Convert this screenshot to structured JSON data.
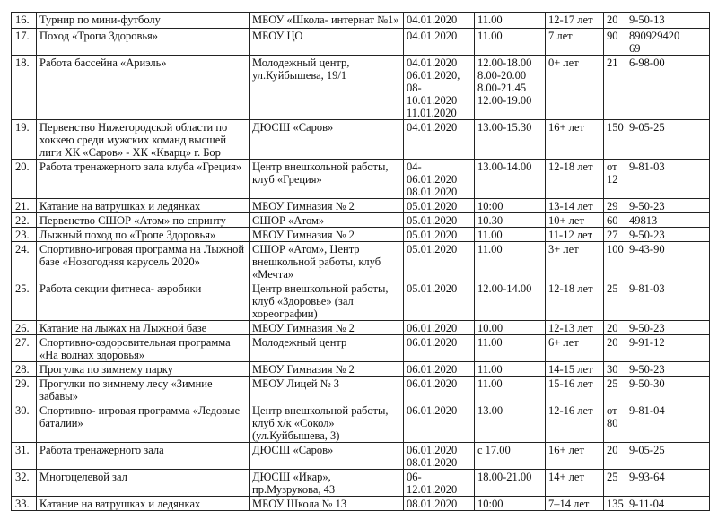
{
  "rows": [
    {
      "n": "16.",
      "name": "Турнир по мини-футболу",
      "org": "МБОУ «Школа- интернат №1»",
      "date": "04.01.2020",
      "time": "11.00",
      "age": "12-17 лет",
      "count": "20",
      "phone": "9-50-13"
    },
    {
      "n": "17.",
      "name": "Поход «Тропа Здоровья»",
      "org": "МБОУ ЦО",
      "date": "04.01.2020",
      "time": "11.00",
      "age": "7 лет",
      "count": "90",
      "phone": "890929420\n69"
    },
    {
      "n": "18.",
      "name": "Работа бассейна «Ариэль»",
      "org": "Молодежный центр,\nул.Куйбышева, 19/1",
      "date": "04.01.2020\n06.01.2020,\n08-10.01.2020\n11.01.2020",
      "time": "12.00-18.00\n8.00-20.00\n8.00-21.45\n12.00-19.00",
      "age": "0+ лет",
      "count": "21",
      "phone": "6-98-00"
    },
    {
      "n": "19.",
      "name": "Первенство Нижегородской области по хоккею среди мужских команд высшей лиги ХК «Саров» - ХК «Кварц» г. Бор",
      "org": "ДЮСШ «Саров»",
      "date": "04.01.2020",
      "time": "13.00-15.30",
      "age": "16+ лет",
      "count": "150",
      "phone": "9-05-25"
    },
    {
      "n": "20.",
      "name": "Работа тренажерного  зала клуба «Греция»",
      "org": "Центр внешкольной работы, клуб «Греция»",
      "date": "04-06.01.2020\n08.01.2020",
      "time": "13.00-14.00",
      "age": "12-18 лет",
      "count": "от\n12",
      "phone": "9-81-03"
    },
    {
      "n": "21.",
      "name": "Катание на ватрушках и ледянках",
      "org": "МБОУ Гимназия № 2",
      "date": "05.01.2020",
      "time": "10:00",
      "age": "13-14 лет",
      "count": "29",
      "phone": "9-50-23"
    },
    {
      "n": "22.",
      "name": "Первенство СШОР «Атом» по спринту",
      "org": "СШОР «Атом»",
      "date": "05.01.2020",
      "time": "10.30",
      "age": "10+ лет",
      "count": "60",
      "phone": "49813"
    },
    {
      "n": "23.",
      "name": "Лыжный поход по «Тропе Здоровья»",
      "org": "МБОУ Гимназия № 2",
      "date": "05.01.2020",
      "time": "11.00",
      "age": "11-12 лет",
      "count": "27",
      "phone": "9-50-23"
    },
    {
      "n": "24.",
      "name": "Спортивно-игровая программа на Лыжной базе «Новогодняя карусель 2020»",
      "org": "СШОР «Атом», Центр внешкольной работы, клуб «Мечта»",
      "date": "05.01.2020",
      "time": "11.00",
      "age": "3+ лет",
      "count": "100",
      "phone": "9-43-90"
    },
    {
      "n": "25.",
      "name": "Работа секции фитнеса- аэробики",
      "org": "Центр внешкольной работы, клуб «Здоровье» (зал хореографии)",
      "date": "05.01.2020",
      "time": "12.00-14.00",
      "age": "12-18 лет",
      "count": "25",
      "phone": "9-81-03"
    },
    {
      "n": "26.",
      "name": "Катание на лыжах на Лыжной базе",
      "org": "МБОУ Гимназия № 2",
      "date": "06.01.2020",
      "time": "10.00",
      "age": "12-13 лет",
      "count": "20",
      "phone": "9-50-23"
    },
    {
      "n": "27.",
      "name": "Спортивно-оздоровительная программа «На волнах здоровья»",
      "org": "Молодежный центр",
      "date": "06.01.2020",
      "time": "11.00",
      "age": "6+ лет",
      "count": "20",
      "phone": "9-91-12"
    },
    {
      "n": "28.",
      "name": "Прогулка по зимнему парку",
      "org": "МБОУ Гимназия № 2",
      "date": "06.01.2020",
      "time": "11.00",
      "age": "14-15 лет",
      "count": "30",
      "phone": "9-50-23"
    },
    {
      "n": "29.",
      "name": "Прогулки по зимнему лесу «Зимние забавы»",
      "org": "МБОУ Лицей № 3",
      "date": "06.01.2020",
      "time": "11.00",
      "age": "15-16 лет",
      "count": "25",
      "phone": "9-50-30"
    },
    {
      "n": "30.",
      "name": "Спортивно- игровая программа «Ледовые баталии»",
      "org": "Центр внешкольной работы, клуб х/к «Сокол» (ул.Куйбышева, 3)",
      "date": "06.01.2020",
      "time": "13.00",
      "age": "12-16 лет",
      "count": "от\n80",
      "phone": "9-81-04"
    },
    {
      "n": "31.",
      "name": "Работа тренажерного зала",
      "org": "ДЮСШ «Саров»",
      "date": "06.01.2020\n08.01.2020",
      "time": "с 17.00",
      "age": "16+ лет",
      "count": "20",
      "phone": "9-05-25"
    },
    {
      "n": "32.",
      "name": "Многоцелевой зал",
      "org": "ДЮСШ «Икар»,\nпр.Музрукова, 43",
      "date": "06-12.01.2020",
      "time": "18.00-21.00",
      "age": "14+ лет",
      "count": "25",
      "phone": "9-93-64"
    },
    {
      "n": "33.",
      "name": "Катание на ватрушках и ледянках",
      "org": "МБОУ Школа № 13",
      "date": "08.01.2020",
      "time": "10:00",
      "age": "7–14 лет",
      "count": "135",
      "phone": "9-11-04"
    }
  ]
}
